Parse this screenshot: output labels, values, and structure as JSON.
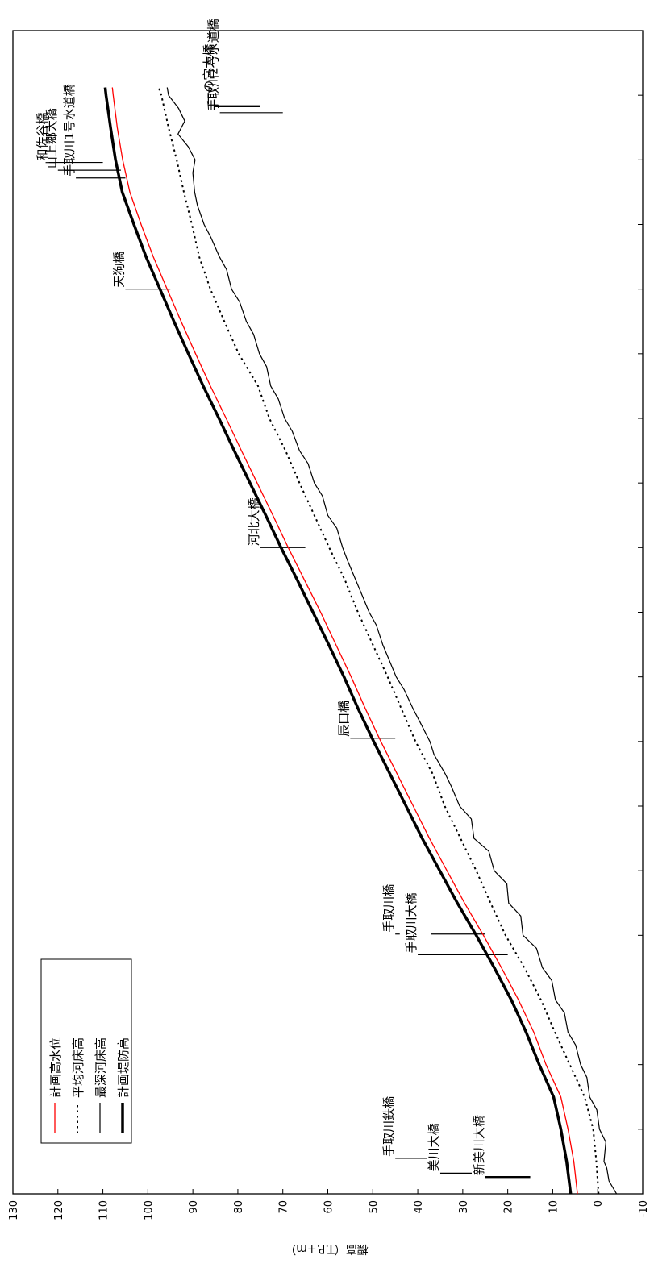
{
  "chart_data": {
    "type": "line",
    "orientation": "rotated-90",
    "ylabel": "標高（T.P.+m）",
    "xlabel": "",
    "ylim": [
      -10,
      130
    ],
    "yticks": [
      -10,
      0,
      10,
      20,
      30,
      40,
      50,
      60,
      70,
      80,
      90,
      100,
      110,
      120,
      130
    ],
    "xlim": [
      0,
      18
    ],
    "grid": false,
    "legend_position": "bottom-left",
    "series": [
      {
        "name": "計画高水位",
        "color": "#ff0000",
        "style": "solid",
        "width": 1.3,
        "x": [
          0,
          0.5,
          1,
          1.5,
          2,
          2.5,
          3,
          3.5,
          4,
          4.5,
          5,
          5.5,
          6,
          6.5,
          7,
          7.5,
          8,
          8.5,
          9,
          9.5,
          10,
          10.5,
          11,
          11.5,
          12,
          12.5,
          13,
          13.5,
          14,
          14.5,
          15,
          15.5,
          16,
          16.5,
          17,
          17.12
        ],
        "values": [
          4.5,
          5.3,
          6.6,
          8.2,
          11.5,
          14.2,
          17.6,
          21.4,
          25.4,
          29.6,
          33.5,
          37.4,
          41.0,
          44.6,
          48.2,
          51.6,
          54.8,
          58.2,
          61.6,
          65.2,
          68.8,
          72.2,
          75.7,
          79.2,
          82.6,
          86.1,
          89.4,
          92.6,
          95.7,
          98.8,
          101.5,
          104.0,
          105.6,
          106.8,
          107.7,
          107.9
        ]
      },
      {
        "name": "平均河床高",
        "color": "#000000",
        "style": "dotted",
        "width": 2,
        "x": [
          0,
          0.5,
          1,
          1.5,
          2,
          2.5,
          3,
          3.5,
          4,
          4.5,
          5,
          5.5,
          6,
          6.5,
          7,
          7.5,
          8,
          8.5,
          9,
          9.5,
          10,
          10.5,
          11,
          11.5,
          12,
          12.5,
          13,
          13.5,
          14,
          14.5,
          15,
          15.5,
          16,
          16.5,
          17,
          17.12
        ],
        "values": [
          -0.2,
          0.3,
          1.0,
          2.9,
          6.2,
          9.5,
          12.6,
          16.3,
          20.5,
          23.8,
          27.0,
          30.5,
          34.0,
          36.7,
          40.5,
          43.6,
          46.7,
          50.0,
          53.3,
          56.2,
          59.7,
          63.0,
          66.3,
          69.4,
          73.0,
          75.5,
          79.8,
          83.0,
          86.1,
          88.6,
          90.2,
          92.0,
          93.6,
          95.4,
          97.0,
          97.6
        ]
      },
      {
        "name": "最深河床高",
        "color": "#000000",
        "style": "solid",
        "width": 1.2,
        "x": [
          0,
          0.2,
          0.4,
          0.5,
          0.8,
          1,
          1.3,
          1.5,
          1.8,
          2,
          2.3,
          2.5,
          2.8,
          3,
          3.3,
          3.5,
          3.8,
          4,
          4.3,
          4.5,
          4.8,
          5,
          5.3,
          5.5,
          5.8,
          6,
          6.3,
          6.5,
          6.8,
          7,
          7.3,
          7.5,
          7.8,
          8,
          8.3,
          8.5,
          8.8,
          9,
          9.3,
          9.5,
          9.8,
          10,
          10.3,
          10.5,
          10.8,
          11,
          11.3,
          11.5,
          11.8,
          12,
          12.3,
          12.5,
          12.8,
          13,
          13.3,
          13.5,
          13.8,
          14,
          14.3,
          14.5,
          14.8,
          15,
          15.3,
          15.5,
          15.8,
          16,
          16.2,
          16.4,
          16.6,
          16.8,
          17,
          17.12
        ],
        "values": [
          -4.2,
          -2.5,
          -2.0,
          -1.4,
          -1.8,
          -0.4,
          0.2,
          1.8,
          2.4,
          3.8,
          4.9,
          6.6,
          7.4,
          9.4,
          10.2,
          12.3,
          13.6,
          16.6,
          17.1,
          19.8,
          20.2,
          23.0,
          24.2,
          27.5,
          28.1,
          30.7,
          32.5,
          33.9,
          36.4,
          37.3,
          39.5,
          41.0,
          43.0,
          44.8,
          46.6,
          47.8,
          49.2,
          50.8,
          52.6,
          53.8,
          55.6,
          56.7,
          58.0,
          60.0,
          61.2,
          63.0,
          64.4,
          66.3,
          67.9,
          69.6,
          71.0,
          72.7,
          73.6,
          75.2,
          76.5,
          78.1,
          79.6,
          81.4,
          82.5,
          84.1,
          86.0,
          87.5,
          89.0,
          89.6,
          90.0,
          89.5,
          91.0,
          93.3,
          91.8,
          93.2,
          95.4,
          95.7
        ]
      },
      {
        "name": "計画堤防高",
        "color": "#000000",
        "style": "solid",
        "width": 3.5,
        "x": [
          0,
          0.5,
          1,
          1.5,
          2,
          2.5,
          3,
          3.5,
          4,
          4.5,
          5,
          5.5,
          6,
          6.5,
          7,
          7.5,
          8,
          8.5,
          9,
          9.5,
          10,
          10.5,
          11,
          11.5,
          12,
          12.5,
          13,
          13.5,
          14,
          14.5,
          15,
          15.5,
          16,
          16.5,
          17,
          17.12
        ],
        "values": [
          6.0,
          6.9,
          8.2,
          9.8,
          13.0,
          15.9,
          19.2,
          23.0,
          27.0,
          31.2,
          35.1,
          39.0,
          42.6,
          46.2,
          49.8,
          53.2,
          56.4,
          59.8,
          63.3,
          66.8,
          70.4,
          73.8,
          77.3,
          80.8,
          84.2,
          87.7,
          91.0,
          94.2,
          97.3,
          100.4,
          103.1,
          105.7,
          107.2,
          108.3,
          109.3,
          109.5
        ]
      }
    ],
    "annotations": [
      {
        "label": "新美川大橋",
        "x": 0.26,
        "y1": 15,
        "y2": 25,
        "bold": true
      },
      {
        "label": "美川大橋",
        "x": 0.32,
        "y1": 28,
        "y2": 35,
        "bold": false
      },
      {
        "label": "手取川鉄橋",
        "x": 0.55,
        "y1": 38,
        "y2": 45,
        "bold": false
      },
      {
        "label": "手取川大橋",
        "x": 3.7,
        "y1": 20,
        "y2": 40,
        "bold": false
      },
      {
        "label": "手取川橋",
        "x": 4.02,
        "y1": 44,
        "y2": 45,
        "bold": false
      },
      {
        "label": "手取川大橋",
        "x": 4.02,
        "y1": 25,
        "y2": 37,
        "bold": false,
        "hidden_label": true
      },
      {
        "label": "辰口橋",
        "x": 7.05,
        "y1": 45,
        "y2": 55,
        "bold": false
      },
      {
        "label": "河北大橋",
        "x": 10.0,
        "y1": 65,
        "y2": 75,
        "bold": false
      },
      {
        "label": "天狗橋",
        "x": 14.0,
        "y1": 95,
        "y2": 105,
        "bold": false
      },
      {
        "label": "和佐谷橋",
        "x": 15.96,
        "y1": 110,
        "y2": 122,
        "bold": false
      },
      {
        "label": "山上郷大橋",
        "x": 15.84,
        "y1": 106,
        "y2": 120,
        "bold": false
      },
      {
        "label": "手取川1号水道橋",
        "x": 15.72,
        "y1": 105,
        "y2": 116,
        "bold": false
      },
      {
        "label": "一の宮大橋",
        "x": 16.83,
        "y1": 75,
        "y2": 85,
        "bold": true
      },
      {
        "label": "手取川2号水道橋",
        "x": 16.73,
        "y1": 70,
        "y2": 84,
        "bold": false
      }
    ]
  }
}
